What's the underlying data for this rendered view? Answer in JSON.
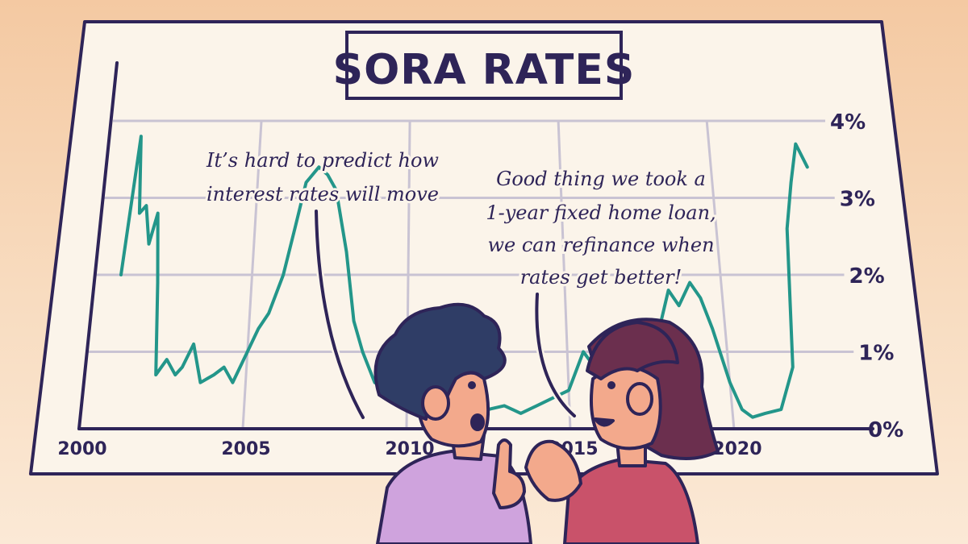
{
  "title": "SORA RATES",
  "speech": {
    "left": [
      "It’s hard to predict how",
      "interest rates will move"
    ],
    "right": [
      "Good thing we took a",
      "1-year fixed home loan,",
      "we can refinance when",
      "rates get better!"
    ]
  },
  "colors": {
    "line": "#23968a",
    "ink": "#2e2458",
    "board": "#fbf4ea",
    "grid": "#c9c3d3",
    "boy_hair": "#2f3d66",
    "boy_shirt": "#cfa3dd",
    "girl_hair": "#6b2f4e",
    "girl_shirt": "#c9526a",
    "skin": "#f3a98c"
  },
  "chart_data": {
    "type": "line",
    "title": "SORA RATES",
    "xlabel": "",
    "ylabel": "",
    "x_ticks": [
      "2000",
      "2005",
      "2010",
      "2015",
      "2020"
    ],
    "y_ticks": [
      "0%",
      "1%",
      "2%",
      "3%",
      "4%"
    ],
    "xlim": [
      2000,
      2023.5
    ],
    "ylim": [
      0,
      4
    ],
    "grid": true,
    "series": [
      {
        "x": [
          2000.8,
          2001.0,
          2001.2,
          2001.4,
          2001.6,
          2001.8,
          2002.0,
          2002.2,
          2002.5,
          2002.8,
          2003.0,
          2003.3,
          2003.6,
          2004.0,
          2004.3,
          2004.6,
          2005.0,
          2005.3,
          2005.6,
          2006.0,
          2006.3,
          2006.6,
          2007.0,
          2007.3,
          2007.6,
          2008.0,
          2008.3,
          2008.6,
          2009.0,
          2009.5,
          2010.0,
          2010.5,
          2011.0,
          2011.5,
          2012.0,
          2012.5,
          2013.0,
          2013.5,
          2014.0,
          2014.5,
          2015.0,
          2015.5,
          2016.0,
          2016.5,
          2017.0,
          2017.5,
          2018.0,
          2018.3,
          2018.6,
          2019.0,
          2019.3,
          2019.6,
          2020.0,
          2020.3,
          2020.6,
          2021.0,
          2021.5,
          2022.0,
          2022.3,
          2022.6,
          2022.9,
          2023.2
        ],
        "y": [
          2.0,
          3.8,
          2.8,
          2.9,
          2.4,
          2.8,
          1.9,
          0.7,
          0.9,
          0.7,
          0.8,
          1.1,
          0.6,
          0.7,
          0.8,
          0.6,
          1.0,
          1.3,
          1.5,
          2.0,
          2.6,
          3.2,
          3.4,
          3.3,
          3.1,
          2.3,
          1.4,
          1.0,
          0.6,
          0.5,
          0.3,
          0.4,
          0.4,
          0.3,
          0.3,
          0.25,
          0.3,
          0.2,
          0.3,
          0.4,
          0.5,
          1.0,
          0.7,
          0.8,
          0.9,
          1.1,
          1.4,
          1.8,
          1.6,
          1.9,
          1.7,
          1.3,
          0.6,
          0.25,
          0.15,
          0.2,
          0.25,
          0.8,
          2.6,
          3.2,
          3.7,
          3.4
        ]
      }
    ]
  }
}
